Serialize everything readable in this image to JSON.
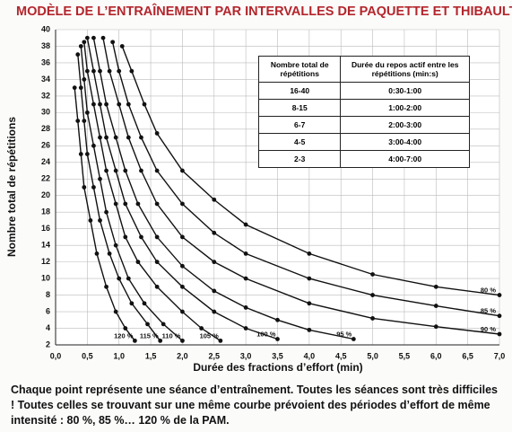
{
  "chart_data": {
    "type": "line",
    "title": "MODÈLE DE L’ENTRAÎNEMENT PAR INTERVALLES DE PAQUETTE ET THIBAULT",
    "xlabel": "Durée des fractions d’effort (min)",
    "ylabel": "Nombre total de répétitions",
    "xlim": [
      0,
      7
    ],
    "ylim": [
      2,
      40
    ],
    "xticks": [
      {
        "value": 0,
        "label": "0,0"
      },
      {
        "value": 0.5,
        "label": "0,5"
      },
      {
        "value": 1,
        "label": "1,0"
      },
      {
        "value": 1.5,
        "label": "1,5"
      },
      {
        "value": 2,
        "label": "2,0"
      },
      {
        "value": 2.5,
        "label": "2,5"
      },
      {
        "value": 3,
        "label": "3,0"
      },
      {
        "value": 3.5,
        "label": "3,5"
      },
      {
        "value": 4,
        "label": "4,0"
      },
      {
        "value": 4.5,
        "label": "4,5"
      },
      {
        "value": 5,
        "label": "5,0"
      },
      {
        "value": 5.5,
        "label": "5,5"
      },
      {
        "value": 6,
        "label": "6,0"
      },
      {
        "value": 6.5,
        "label": "6,5"
      },
      {
        "value": 7,
        "label": "7,0"
      }
    ],
    "yticks": [
      2,
      4,
      6,
      8,
      10,
      12,
      14,
      16,
      18,
      20,
      22,
      24,
      26,
      28,
      30,
      32,
      34,
      36,
      38,
      40
    ],
    "grid": true,
    "series": [
      {
        "name": "80 %",
        "color": "#111",
        "x": [
          1.05,
          1.2,
          1.4,
          1.6,
          2.0,
          2.5,
          3.0,
          4.0,
          5.0,
          6.0,
          7.0
        ],
        "values": [
          38,
          35,
          31,
          27.5,
          23,
          19.5,
          16.5,
          13,
          10.5,
          9,
          8
        ]
      },
      {
        "name": "85 %",
        "color": "#111",
        "x": [
          0.9,
          1.0,
          1.15,
          1.35,
          1.6,
          2.0,
          2.5,
          3.0,
          4.0,
          5.0,
          6.0,
          7.0
        ],
        "values": [
          38.5,
          35,
          31,
          27,
          23,
          19,
          15.5,
          13,
          10,
          8,
          6.7,
          5.5
        ]
      },
      {
        "name": "90 %",
        "color": "#111",
        "x": [
          0.75,
          0.85,
          1.0,
          1.15,
          1.35,
          1.6,
          2.0,
          2.5,
          3.0,
          4.0,
          5.0,
          6.0,
          7.0
        ],
        "values": [
          39,
          35,
          31,
          27,
          23,
          19,
          15,
          12,
          10,
          7,
          5.2,
          4.2,
          3.3
        ]
      },
      {
        "name": "95 %",
        "color": "#111",
        "x": [
          0.6,
          0.7,
          0.8,
          0.95,
          1.1,
          1.3,
          1.6,
          2.0,
          2.5,
          3.0,
          3.5,
          4.0,
          4.7
        ],
        "values": [
          39,
          35,
          31,
          27,
          23,
          19,
          15,
          11.5,
          8.5,
          6.5,
          5,
          3.8,
          2.7
        ]
      },
      {
        "name": "100 %",
        "color": "#111",
        "x": [
          0.5,
          0.6,
          0.7,
          0.8,
          0.95,
          1.1,
          1.35,
          1.6,
          2.0,
          2.5,
          3.0,
          3.5
        ],
        "values": [
          39,
          35,
          31,
          27,
          23,
          19,
          15,
          12,
          9,
          6,
          4,
          2.7
        ]
      },
      {
        "name": "105 %",
        "color": "#111",
        "x": [
          0.45,
          0.5,
          0.6,
          0.7,
          0.8,
          0.95,
          1.1,
          1.3,
          1.6,
          2.0,
          2.3,
          2.6
        ],
        "values": [
          38.5,
          35,
          31,
          27,
          23,
          19,
          15,
          12,
          9,
          6,
          4,
          2.5
        ]
      },
      {
        "name": "110 %",
        "color": "#111",
        "x": [
          0.4,
          0.45,
          0.5,
          0.6,
          0.7,
          0.8,
          0.95,
          1.15,
          1.4,
          1.7,
          2.0
        ],
        "values": [
          38,
          34,
          30,
          26,
          22,
          18,
          14,
          10,
          7,
          4.5,
          2.5
        ]
      },
      {
        "name": "115 %",
        "color": "#111",
        "x": [
          0.35,
          0.4,
          0.45,
          0.5,
          0.6,
          0.7,
          0.85,
          1.0,
          1.2,
          1.45,
          1.65
        ],
        "values": [
          37,
          33,
          29,
          25,
          21,
          17,
          13,
          10,
          7,
          4.5,
          2.5
        ]
      },
      {
        "name": "120 %",
        "color": "#111",
        "x": [
          0.3,
          0.35,
          0.4,
          0.45,
          0.55,
          0.65,
          0.8,
          0.95,
          1.1,
          1.25
        ],
        "values": [
          33,
          29,
          25,
          21,
          17,
          13,
          9,
          6,
          4,
          2.5
        ]
      }
    ],
    "inset_table": {
      "header": [
        "Nombre total de répétitions",
        "Durée du repos actif entre les répétitions (min:s)"
      ],
      "rows": [
        [
          "16-40",
          "0:30-1:00"
        ],
        [
          "8-15",
          "1:00-2:00"
        ],
        [
          "6-7",
          "2:00-3:00"
        ],
        [
          "4-5",
          "3:00-4:00"
        ],
        [
          "2-3",
          "4:00-7:00"
        ]
      ]
    },
    "caption": "Chaque point représente une séance d’entraînement. Toutes les séances sont très difficiles ! Toutes celles se trouvant sur une même courbe prévoient des périodes d’effort de même intensité : 80 %, 85 %… 120 % de la PAM."
  }
}
